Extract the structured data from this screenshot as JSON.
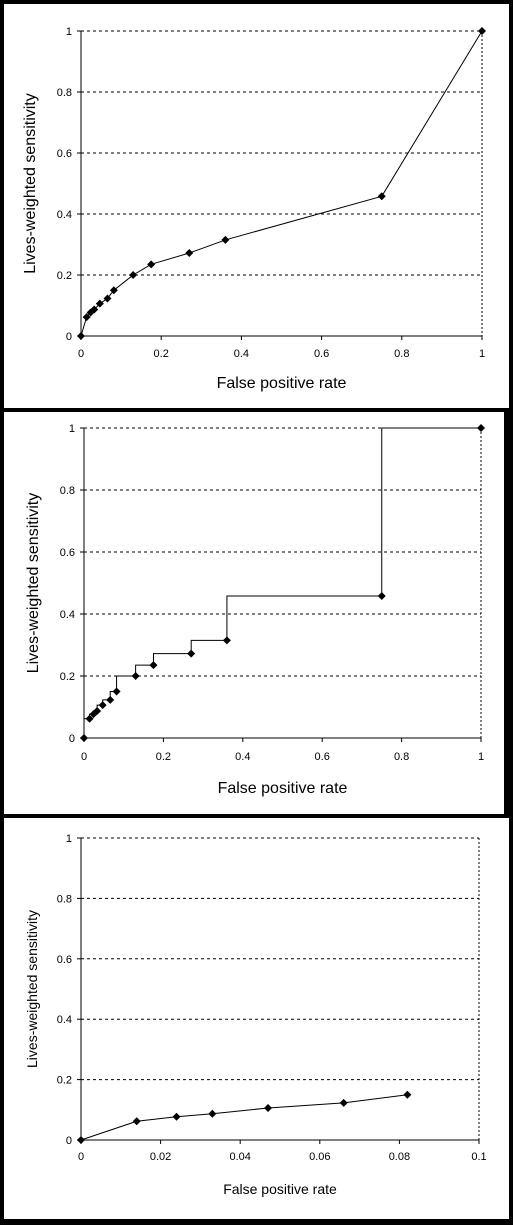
{
  "chart_data": [
    {
      "type": "line",
      "step": false,
      "xlabel": "False positive rate",
      "ylabel": "Lives-weighted sensitivity",
      "xlim": [
        0,
        1
      ],
      "ylim": [
        0,
        1
      ],
      "xticks": [
        "0",
        "0.2",
        "0.4",
        "0.6",
        "0.8",
        "1"
      ],
      "yticks": [
        "0",
        "0.2",
        "0.4",
        "0.6",
        "0.8",
        "1"
      ],
      "grid": "horizontal dashed",
      "line_color": "#000000",
      "marker": "diamond",
      "series": [
        {
          "x": [
            0,
            0.014,
            0.024,
            0.033,
            0.047,
            0.066,
            0.082,
            0.13,
            0.175,
            0.27,
            0.36,
            0.75,
            1.0
          ],
          "y": [
            0,
            0.062,
            0.077,
            0.087,
            0.106,
            0.123,
            0.15,
            0.2,
            0.235,
            0.272,
            0.315,
            0.458,
            1.0
          ]
        }
      ]
    },
    {
      "type": "line",
      "step": true,
      "xlabel": "False positive rate",
      "ylabel": "Lives-weighted sensitivity",
      "xlim": [
        0,
        1
      ],
      "ylim": [
        0,
        1
      ],
      "xticks": [
        "0",
        "0.2",
        "0.4",
        "0.6",
        "0.8",
        "1"
      ],
      "yticks": [
        "0",
        "0.2",
        "0.4",
        "0.6",
        "0.8",
        "1"
      ],
      "grid": "horizontal dashed",
      "line_color": "#000000",
      "marker": "diamond",
      "series": [
        {
          "x": [
            0,
            0.014,
            0.024,
            0.033,
            0.047,
            0.066,
            0.082,
            0.13,
            0.175,
            0.27,
            0.36,
            0.75,
            1.0
          ],
          "y": [
            0,
            0.062,
            0.077,
            0.087,
            0.106,
            0.123,
            0.15,
            0.2,
            0.235,
            0.272,
            0.315,
            0.458,
            1.0
          ]
        }
      ]
    },
    {
      "type": "line",
      "step": false,
      "xlabel": "False positive rate",
      "ylabel": "Lives-weighted sensitivity",
      "xlim": [
        0,
        0.1
      ],
      "ylim": [
        0,
        1
      ],
      "xticks": [
        "0",
        "0.02",
        "0.04",
        "0.06",
        "0.08",
        "0.1"
      ],
      "yticks": [
        "0",
        "0.2",
        "0.4",
        "0.6",
        "0.8",
        "1"
      ],
      "grid": "horizontal dashed",
      "line_color": "#000000",
      "marker": "diamond",
      "series": [
        {
          "x": [
            0,
            0.014,
            0.024,
            0.033,
            0.047,
            0.066,
            0.082
          ],
          "y": [
            0,
            0.062,
            0.077,
            0.087,
            0.106,
            0.123,
            0.15
          ]
        }
      ]
    }
  ]
}
